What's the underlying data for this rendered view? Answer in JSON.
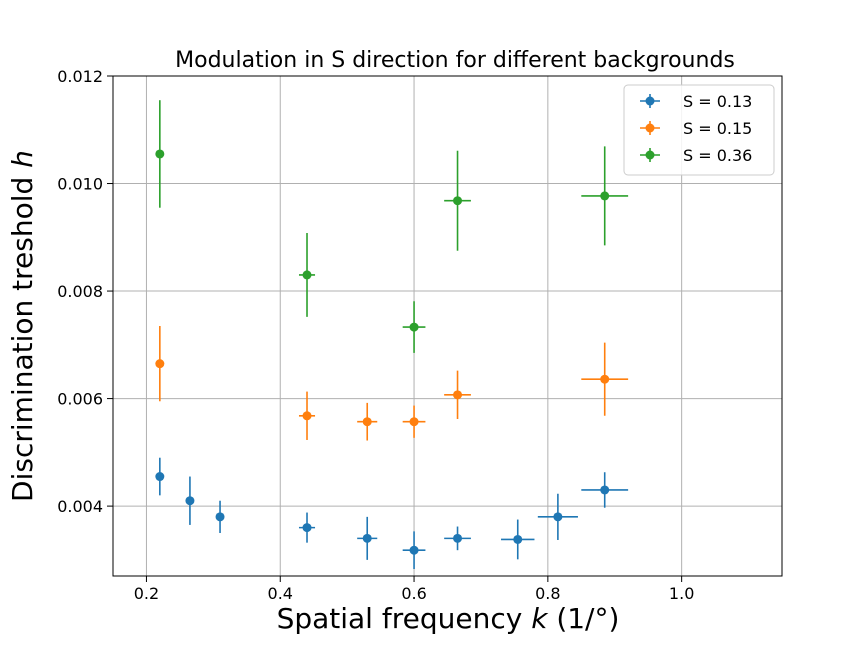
{
  "chart_data": {
    "type": "scatter",
    "title": "Modulation in S direction for different backgrounds",
    "xlabel_pre": "Spatial frequency ",
    "xlabel_var": "k",
    "xlabel_post": " (1/°)",
    "ylabel_pre": "Discrimination treshold ",
    "ylabel_var": "h",
    "xlim": [
      0.15,
      1.15
    ],
    "ylim": [
      0.0027,
      0.012
    ],
    "x_ticks": [
      0.2,
      0.4,
      0.6,
      0.8,
      1.0
    ],
    "x_tick_labels": [
      "0.2",
      "0.4",
      "0.6",
      "0.8",
      "1.0"
    ],
    "y_ticks": [
      0.004,
      0.006,
      0.008,
      0.01,
      0.012
    ],
    "y_tick_labels": [
      "0.004",
      "0.006",
      "0.008",
      "0.010",
      "0.012"
    ],
    "grid": true,
    "legend_position": "top-right",
    "series": [
      {
        "name": "S = 0.13",
        "color": "#1f77b4",
        "points": [
          {
            "x": 0.22,
            "y": 0.00455,
            "xerr": 0.0,
            "yerr": 0.00035
          },
          {
            "x": 0.265,
            "y": 0.0041,
            "xerr": 0.0,
            "yerr": 0.00045
          },
          {
            "x": 0.31,
            "y": 0.0038,
            "xerr": 0.0,
            "yerr": 0.0003
          },
          {
            "x": 0.44,
            "y": 0.0036,
            "xerr": 0.012,
            "yerr": 0.00028
          },
          {
            "x": 0.53,
            "y": 0.0034,
            "xerr": 0.015,
            "yerr": 0.0004
          },
          {
            "x": 0.6,
            "y": 0.00318,
            "xerr": 0.017,
            "yerr": 0.00035
          },
          {
            "x": 0.665,
            "y": 0.0034,
            "xerr": 0.02,
            "yerr": 0.00022
          },
          {
            "x": 0.755,
            "y": 0.00338,
            "xerr": 0.025,
            "yerr": 0.00037
          },
          {
            "x": 0.815,
            "y": 0.0038,
            "xerr": 0.03,
            "yerr": 0.00043
          },
          {
            "x": 0.885,
            "y": 0.0043,
            "xerr": 0.035,
            "yerr": 0.00033
          }
        ]
      },
      {
        "name": "S = 0.15",
        "color": "#ff7f0e",
        "points": [
          {
            "x": 0.22,
            "y": 0.00665,
            "xerr": 0.0,
            "yerr": 0.0007
          },
          {
            "x": 0.44,
            "y": 0.00568,
            "xerr": 0.012,
            "yerr": 0.00045
          },
          {
            "x": 0.53,
            "y": 0.00557,
            "xerr": 0.015,
            "yerr": 0.00035
          },
          {
            "x": 0.6,
            "y": 0.00557,
            "xerr": 0.017,
            "yerr": 0.0003
          },
          {
            "x": 0.665,
            "y": 0.00607,
            "xerr": 0.02,
            "yerr": 0.00045
          },
          {
            "x": 0.885,
            "y": 0.00636,
            "xerr": 0.035,
            "yerr": 0.00068
          }
        ]
      },
      {
        "name": "S = 0.36",
        "color": "#2ca02c",
        "points": [
          {
            "x": 0.22,
            "y": 0.01055,
            "xerr": 0.0,
            "yerr": 0.001
          },
          {
            "x": 0.44,
            "y": 0.0083,
            "xerr": 0.012,
            "yerr": 0.00078
          },
          {
            "x": 0.6,
            "y": 0.00733,
            "xerr": 0.017,
            "yerr": 0.00048
          },
          {
            "x": 0.665,
            "y": 0.00968,
            "xerr": 0.02,
            "yerr": 0.00093
          },
          {
            "x": 0.885,
            "y": 0.00977,
            "xerr": 0.035,
            "yerr": 0.00092
          }
        ]
      }
    ]
  }
}
